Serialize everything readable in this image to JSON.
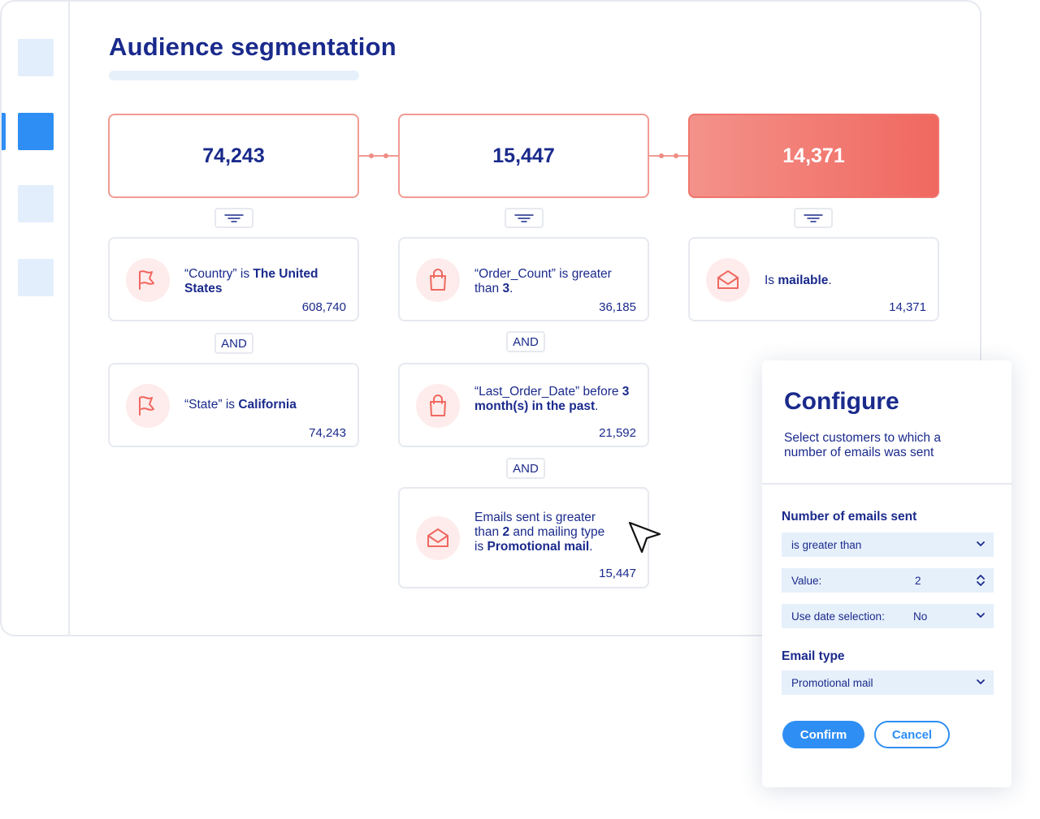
{
  "page": {
    "title": "Audience segmentation"
  },
  "colors": {
    "accent_blue": "#2f8ef3",
    "navy_text": "#1a2a8c",
    "coral": "#f06860",
    "coral_light": "#fdeceb",
    "light_blue": "#e6f0fb"
  },
  "sidebar": {
    "items": [
      {
        "name": "nav-item-1",
        "active": false
      },
      {
        "name": "nav-item-2",
        "active": true
      },
      {
        "name": "nav-item-3",
        "active": false
      },
      {
        "name": "nav-item-4",
        "active": false
      }
    ]
  },
  "segments": [
    {
      "count": "74,243",
      "conditions": [
        {
          "icon": "flag-icon",
          "pre": "“Country” is ",
          "bold": "The United States",
          "post": "",
          "count": "608,740"
        },
        {
          "icon": "flag-icon",
          "pre": "“State” is ",
          "bold": "California",
          "post": "",
          "count": "74,243"
        }
      ],
      "and_label": "AND"
    },
    {
      "count": "15,447",
      "conditions": [
        {
          "icon": "shopping-bag-icon",
          "pre": "“Order_Count” is greater than ",
          "bold": "3",
          "post": ".",
          "count": "36,185"
        },
        {
          "icon": "shopping-bag-icon",
          "pre": "“Last_Order_Date” before ",
          "bold": "3 month(s) in the past",
          "post": ".",
          "count": "21,592"
        },
        {
          "icon": "envelope-open-icon",
          "pre": "Emails sent is greater than ",
          "bold": "2",
          "mid": " and mailing type is ",
          "bold2": "Promotional mail",
          "post": ".",
          "count": "15,447"
        }
      ],
      "and_label": "AND"
    },
    {
      "count": "14,371",
      "conditions": [
        {
          "icon": "envelope-open-icon",
          "pre": "Is ",
          "bold": "mailable",
          "post": ".",
          "count": "14,371"
        }
      ]
    }
  ],
  "configure": {
    "title": "Configure",
    "description": "Select customers to which a number of emails was sent",
    "emails_section_label": "Number of emails sent",
    "operator_value": "is greater than",
    "value_label": "Value:",
    "value": "2",
    "date_selection_label": "Use date selection:",
    "date_selection_value": "No",
    "email_type_label": "Email type",
    "email_type_value": "Promotional mail",
    "confirm_label": "Confirm",
    "cancel_label": "Cancel"
  }
}
